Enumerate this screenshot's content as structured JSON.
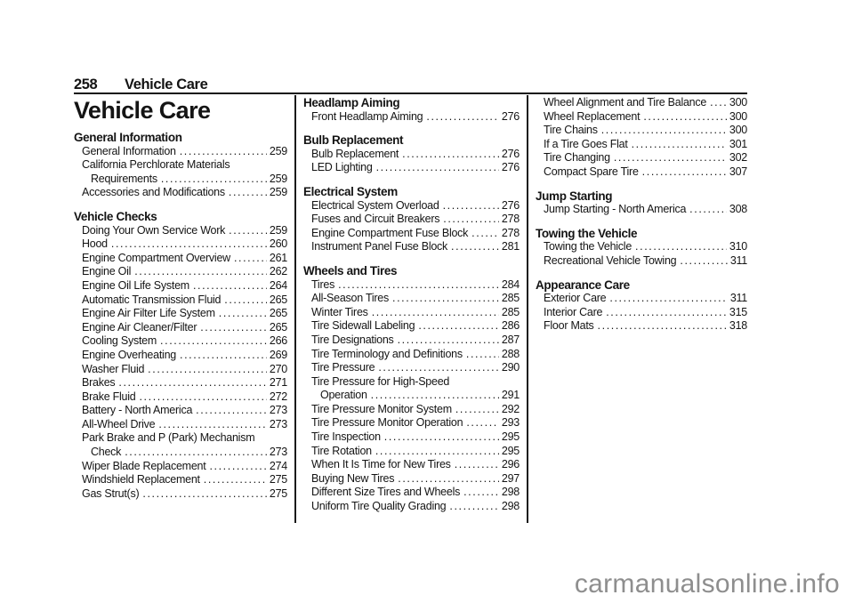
{
  "page": {
    "header": {
      "page_number": "258",
      "section_title": "Vehicle Care"
    },
    "title": "Vehicle Care",
    "watermark": "carmanualsonline.info"
  },
  "colors": {
    "ink": "#141414",
    "watermark": "#8e8e8e"
  },
  "columns": [
    {
      "sections": [
        {
          "heading": "General Information",
          "entries": [
            {
              "label": "General Information",
              "page": "259"
            },
            {
              "label": "California Perchlorate Materials",
              "label2": "Requirements",
              "page": "259"
            },
            {
              "label": "Accessories and Modifications",
              "page": "259"
            }
          ]
        },
        {
          "heading": "Vehicle Checks",
          "entries": [
            {
              "label": "Doing Your Own Service Work",
              "page": "259"
            },
            {
              "label": "Hood",
              "page": "260"
            },
            {
              "label": "Engine Compartment Overview",
              "page": "261"
            },
            {
              "label": "Engine Oil",
              "page": "262"
            },
            {
              "label": "Engine Oil Life System",
              "page": "264"
            },
            {
              "label": "Automatic Transmission Fluid",
              "page": "265"
            },
            {
              "label": "Engine Air Filter Life System",
              "page": "265"
            },
            {
              "label": "Engine Air Cleaner/Filter",
              "page": "265"
            },
            {
              "label": "Cooling System",
              "page": "266"
            },
            {
              "label": "Engine Overheating",
              "page": "269"
            },
            {
              "label": "Washer Fluid",
              "page": "270"
            },
            {
              "label": "Brakes",
              "page": "271"
            },
            {
              "label": "Brake Fluid",
              "page": "272"
            },
            {
              "label": "Battery - North America",
              "page": "273"
            },
            {
              "label": "All-Wheel Drive",
              "page": "273"
            },
            {
              "label": "Park Brake and P (Park) Mechanism",
              "label2": "Check",
              "page": "273"
            },
            {
              "label": "Wiper Blade Replacement",
              "page": "274"
            },
            {
              "label": "Windshield Replacement",
              "page": "275"
            },
            {
              "label": "Gas Strut(s)",
              "page": "275"
            }
          ]
        }
      ]
    },
    {
      "sections": [
        {
          "heading": "Headlamp Aiming",
          "entries": [
            {
              "label": "Front Headlamp Aiming",
              "page": "276"
            }
          ]
        },
        {
          "heading": "Bulb Replacement",
          "entries": [
            {
              "label": "Bulb Replacement",
              "page": "276"
            },
            {
              "label": "LED Lighting",
              "page": "276"
            }
          ]
        },
        {
          "heading": "Electrical System",
          "entries": [
            {
              "label": "Electrical System Overload",
              "page": "276"
            },
            {
              "label": "Fuses and Circuit Breakers",
              "page": "278"
            },
            {
              "label": "Engine Compartment Fuse Block",
              "page": "278"
            },
            {
              "label": "Instrument Panel Fuse Block",
              "page": "281"
            }
          ]
        },
        {
          "heading": "Wheels and Tires",
          "entries": [
            {
              "label": "Tires",
              "page": "284"
            },
            {
              "label": "All-Season Tires",
              "page": "285"
            },
            {
              "label": "Winter Tires",
              "page": "285"
            },
            {
              "label": "Tire Sidewall Labeling",
              "page": "286"
            },
            {
              "label": "Tire Designations",
              "page": "287"
            },
            {
              "label": "Tire Terminology and Definitions",
              "page": "288"
            },
            {
              "label": "Tire Pressure",
              "page": "290"
            },
            {
              "label": "Tire Pressure for High-Speed",
              "label2": "Operation",
              "page": "291"
            },
            {
              "label": "Tire Pressure Monitor System",
              "page": "292"
            },
            {
              "label": "Tire Pressure Monitor Operation",
              "page": "293"
            },
            {
              "label": "Tire Inspection",
              "page": "295"
            },
            {
              "label": "Tire Rotation",
              "page": "295"
            },
            {
              "label": "When It Is Time for New Tires",
              "page": "296"
            },
            {
              "label": "Buying New Tires",
              "page": "297"
            },
            {
              "label": "Different Size Tires and Wheels",
              "page": "298"
            },
            {
              "label": "Uniform Tire Quality Grading",
              "page": "298"
            }
          ]
        }
      ]
    },
    {
      "sections": [
        {
          "heading": null,
          "entries": [
            {
              "label": "Wheel Alignment and Tire Balance",
              "page": "300"
            },
            {
              "label": "Wheel Replacement",
              "page": "300"
            },
            {
              "label": "Tire Chains",
              "page": "300"
            },
            {
              "label": "If a Tire Goes Flat",
              "page": "301"
            },
            {
              "label": "Tire Changing",
              "page": "302"
            },
            {
              "label": "Compact Spare Tire",
              "page": "307"
            }
          ]
        },
        {
          "heading": "Jump Starting",
          "entries": [
            {
              "label": "Jump Starting - North America",
              "page": "308"
            }
          ]
        },
        {
          "heading": "Towing the Vehicle",
          "entries": [
            {
              "label": "Towing the Vehicle",
              "page": "310"
            },
            {
              "label": "Recreational Vehicle Towing",
              "page": "311"
            }
          ]
        },
        {
          "heading": "Appearance Care",
          "entries": [
            {
              "label": "Exterior Care",
              "page": "311"
            },
            {
              "label": "Interior Care",
              "page": "315"
            },
            {
              "label": "Floor Mats",
              "page": "318"
            }
          ]
        }
      ]
    }
  ]
}
